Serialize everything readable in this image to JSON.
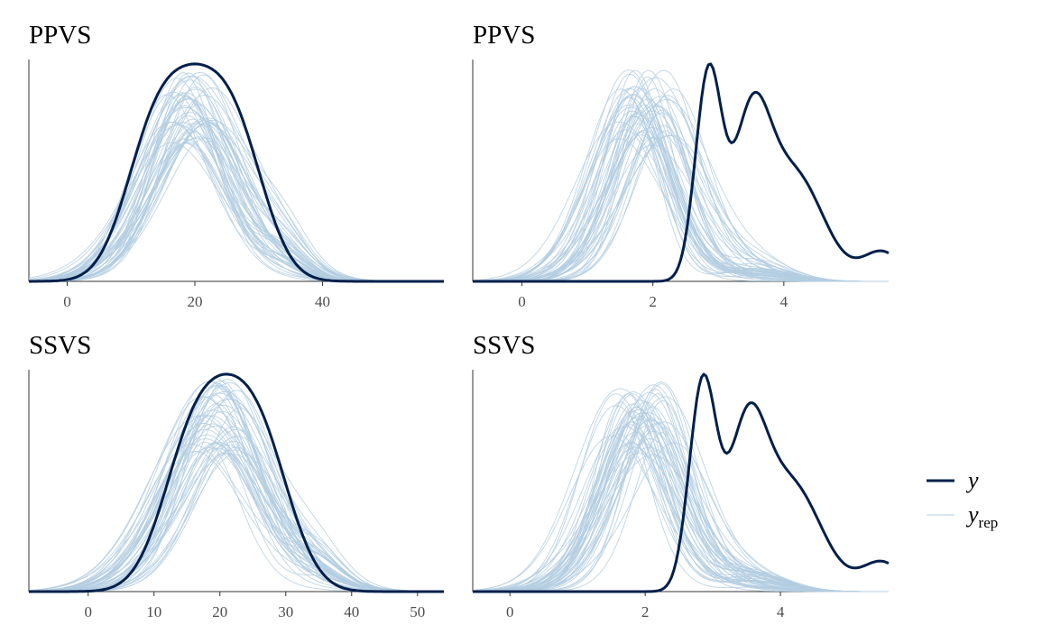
{
  "chart_data": [
    {
      "type": "line",
      "title": "PPVS",
      "xlim": [
        -6,
        59
      ],
      "xticks": [
        0,
        20,
        40
      ],
      "y_peak": 0.5,
      "y_main_peak": 0.5,
      "y": {
        "components": [
          [
            0.3,
            13.0,
            4.5
          ],
          [
            0.4,
            20.0,
            5.0
          ],
          [
            0.3,
            27.0,
            4.5
          ]
        ]
      },
      "yrep": {
        "count": 50,
        "mean_center": 19.5,
        "sd": 7.5,
        "center_jitter": 2.0,
        "sd_jitter": 1.5,
        "secondary": [
          0.15,
          34.0,
          4.0
        ]
      }
    },
    {
      "type": "line",
      "title": "PPVS",
      "xlim": [
        -0.75,
        5.6
      ],
      "xticks": [
        0,
        2,
        4
      ],
      "y_peak": 0.55,
      "y_main_peak": 0.55,
      "y": {
        "components": [
          [
            0.42,
            2.85,
            0.2
          ],
          [
            0.3,
            3.5,
            0.28
          ],
          [
            0.22,
            4.15,
            0.45
          ],
          [
            0.06,
            5.5,
            0.3
          ]
        ]
      },
      "yrep": {
        "count": 50,
        "mean_center": 1.85,
        "sd": 0.62,
        "center_jitter": 0.3,
        "sd_jitter": 0.15,
        "secondary": [
          0.1,
          3.6,
          0.5
        ]
      }
    },
    {
      "type": "line",
      "title": "SSVS",
      "xlim": [
        -9,
        54
      ],
      "xticks": [
        0,
        10,
        20,
        30,
        40,
        50
      ],
      "y_peak": 0.5,
      "y_main_peak": 0.5,
      "y": {
        "components": [
          [
            0.3,
            15.0,
            4.5
          ],
          [
            0.4,
            21.0,
            5.0
          ],
          [
            0.3,
            27.0,
            4.5
          ]
        ]
      },
      "yrep": {
        "count": 50,
        "mean_center": 19.5,
        "sd": 7.5,
        "center_jitter": 2.0,
        "sd_jitter": 1.5,
        "secondary": [
          0.15,
          35.0,
          4.0
        ]
      }
    },
    {
      "type": "line",
      "title": "SSVS",
      "xlim": [
        -0.55,
        5.6
      ],
      "xticks": [
        0,
        2,
        4
      ],
      "y_peak": 0.55,
      "y_main_peak": 0.55,
      "y": {
        "components": [
          [
            0.42,
            2.85,
            0.2
          ],
          [
            0.3,
            3.5,
            0.28
          ],
          [
            0.22,
            4.15,
            0.45
          ],
          [
            0.06,
            5.5,
            0.3
          ]
        ]
      },
      "yrep": {
        "count": 50,
        "mean_center": 1.95,
        "sd": 0.62,
        "center_jitter": 0.3,
        "sd_jitter": 0.15,
        "secondary": [
          0.1,
          3.6,
          0.5
        ]
      }
    }
  ],
  "legend": {
    "items": [
      {
        "label": "y",
        "sub": "",
        "color": "#011f4b",
        "width": 3
      },
      {
        "label": "y",
        "sub": "rep",
        "color": "#b3cde0",
        "width": 1
      }
    ]
  },
  "colors": {
    "y": "#011f4b",
    "yrep": "#b3cde0"
  }
}
